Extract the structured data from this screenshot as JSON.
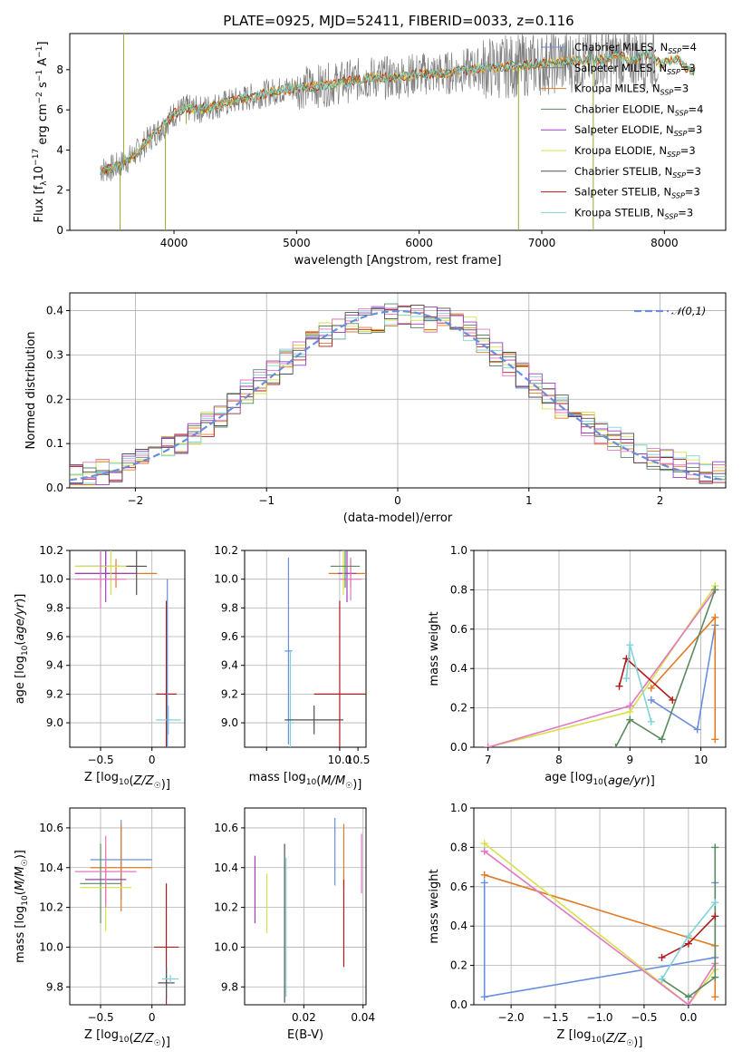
{
  "figure_title": "PLATE=0925, MJD=52411, FIBERID=0033, z=0.116",
  "series_colors": {
    "Chabrier MILES": "#6a8ede",
    "Salpeter MILES": "#808080",
    "Kroupa MILES": "#e07b25",
    "Chabrier ELODIE": "#5a8a5e",
    "Salpeter ELODIE": "#9b3fc0",
    "Kroupa ELODIE": "#d6e04a",
    "Chabrier STELIB": "#505050",
    "Salpeter STELIB": "#b01c1c",
    "Kroupa STELIB": "#7fd3d8",
    "data": "#808080",
    "normal": "#6a8ede",
    "pink": "#e377c2"
  },
  "chart_data": [
    {
      "id": "spectrum",
      "type": "line",
      "xlabel": "wavelength [Angstrom, rest frame]",
      "ylabel": "Flux [f_λ10^-17 erg cm^-2 s^-1 A^-1]",
      "xlim": [
        3150,
        8500
      ],
      "ylim": [
        0,
        9.8
      ],
      "xticks": [
        4000,
        5000,
        6000,
        7000,
        8000
      ],
      "yticks": [
        0,
        2,
        4,
        6,
        8
      ],
      "legend_position": "right",
      "legend": [
        "Chabrier MILES, N_SSP=4",
        "Salpeter MILES, N_SSP=3",
        "Kroupa MILES, N_SSP=3",
        "Chabrier ELODIE, N_SSP=4",
        "Salpeter ELODIE, N_SSP=3",
        "Kroupa ELODIE, N_SSP=3",
        "Chabrier STELIB, N_SSP=3",
        "Salpeter STELIB, N_SSP=3",
        "Kroupa STELIB, N_SSP=3"
      ],
      "continuum": {
        "x": [
          3400,
          3500,
          3600,
          3700,
          3800,
          3900,
          4000,
          4100,
          4200,
          4400,
          4600,
          4800,
          5000,
          5200,
          5400,
          5600,
          5800,
          6000,
          6200,
          6400,
          6600,
          6800,
          7000,
          7200,
          7400,
          7600,
          7800,
          8000,
          8200
        ],
        "y": [
          3.0,
          3.1,
          3.4,
          3.9,
          4.6,
          5.1,
          5.8,
          6.1,
          6.0,
          6.3,
          6.6,
          6.9,
          7.1,
          7.2,
          7.4,
          7.6,
          7.6,
          7.8,
          7.8,
          8.0,
          8.1,
          8.2,
          8.3,
          8.4,
          8.5,
          8.6,
          8.6,
          8.5,
          8.1
        ]
      }
    },
    {
      "id": "residuals",
      "type": "line",
      "xlabel": "(data-model)/error",
      "ylabel": "Normed distribution",
      "xlim": [
        -2.5,
        2.5
      ],
      "ylim": [
        0,
        0.44
      ],
      "xticks": [
        -2,
        -1,
        0,
        1,
        2
      ],
      "yticks": [
        0.0,
        0.1,
        0.2,
        0.3,
        0.4
      ],
      "legend": [
        "𝒩(0,1)"
      ],
      "legend_position": "top-right",
      "bin_width": 0.1,
      "hist_envelope": {
        "x": [
          -2.5,
          -2.0,
          -1.5,
          -1.0,
          -0.5,
          0.0,
          0.5,
          1.0,
          1.5,
          2.0,
          2.5
        ],
        "y": [
          0.02,
          0.05,
          0.13,
          0.25,
          0.36,
          0.39,
          0.37,
          0.24,
          0.13,
          0.06,
          0.03
        ]
      }
    },
    {
      "id": "z-vs-age",
      "type": "scatter",
      "xlabel": "Z [log10(Z/Z☉)]",
      "ylabel": "age  [log10(age/yr)]",
      "xlim": [
        -0.8,
        0.32
      ],
      "ylim": [
        8.83,
        10.2
      ],
      "xticks": [
        -0.5,
        0.0
      ],
      "yticks": [
        9.0,
        9.2,
        9.4,
        9.6,
        9.8,
        10.0,
        10.2
      ],
      "points": [
        {
          "series": "Salpeter MILES",
          "x": -0.45,
          "xerr": 0.3,
          "y": 10.09,
          "yerr": 0.1
        },
        {
          "series": "Kroupa MILES",
          "x": -0.35,
          "xerr": 0.4,
          "y": 10.04,
          "yerr": 0.1
        },
        {
          "series": "Chabrier ELODIE",
          "x": -0.5,
          "xerr": 0.2,
          "y": 10.09,
          "yerr": 0.15
        },
        {
          "series": "Salpeter ELODIE",
          "x": -0.45,
          "xerr": 0.3,
          "y": 10.04,
          "yerr": 0.2
        },
        {
          "series": "Kroupa ELODIE",
          "x": -0.4,
          "xerr": 0.35,
          "y": 10.09,
          "yerr": 0.2
        },
        {
          "series": "pink",
          "x": -0.5,
          "xerr": 0.25,
          "y": 10.0,
          "yerr": 0.2
        },
        {
          "series": "Chabrier STELIB",
          "x": -0.15,
          "xerr": 0.1,
          "y": 10.09,
          "yerr": 0.2
        },
        {
          "series": "Salpeter STELIB",
          "x": 0.14,
          "xerr": 0.1,
          "y": 9.2,
          "yerr": 0.65
        },
        {
          "series": "Kroupa STELIB",
          "x": 0.16,
          "xerr": 0.12,
          "y": 9.02,
          "yerr": 0.1
        },
        {
          "series": "Chabrier MILES",
          "x": 0.15,
          "xerr": 0.0,
          "y": 9.4,
          "yerr": 0.6
        }
      ]
    },
    {
      "id": "mass-vs-age",
      "type": "scatter",
      "xlabel": "mass [log10(M/M☉)]",
      "ylabel": "",
      "xlim": [
        7.4,
        10.72
      ],
      "ylim": [
        8.83,
        10.2
      ],
      "xticks": [
        8,
        10
      ],
      "xtick_labels": [
        "",
        "10.0"
      ],
      "yticks": [
        9.0,
        9.2,
        9.4,
        9.6,
        9.8,
        10.0,
        10.2
      ],
      "extra_xticks": [
        10.5
      ],
      "points": [
        {
          "series": "Chabrier MILES",
          "x": 8.6,
          "xerr": 0.1,
          "y": 9.5,
          "yerr": 0.65
        },
        {
          "series": "Kroupa STELIB",
          "x": 8.65,
          "xerr": 0.1,
          "y": 9.0,
          "yerr": 0.5
        },
        {
          "series": "Chabrier STELIB",
          "x": 9.3,
          "xerr": 0.8,
          "y": 9.02,
          "yerr": 0.1
        },
        {
          "series": "Salpeter STELIB",
          "x": 10.0,
          "xerr": 0.7,
          "y": 9.2,
          "yerr": 0.65
        },
        {
          "series": "Kroupa MILES",
          "x": 10.3,
          "xerr": 0.6,
          "y": 10.04,
          "yerr": 0.1
        },
        {
          "series": "Salpeter ELODIE",
          "x": 10.2,
          "xerr": 0.25,
          "y": 10.04,
          "yerr": 0.2
        },
        {
          "series": "Kroupa ELODIE",
          "x": 10.1,
          "xerr": 0.3,
          "y": 10.09,
          "yerr": 0.2
        },
        {
          "series": "pink",
          "x": 10.3,
          "xerr": 0.3,
          "y": 10.0,
          "yerr": 0.15
        },
        {
          "series": "Chabrier ELODIE",
          "x": 10.15,
          "xerr": 0.4,
          "y": 10.09,
          "yerr": 0.15
        }
      ]
    },
    {
      "id": "age-vs-weight",
      "type": "line",
      "xlabel": "age  [log10(age/yr)]",
      "ylabel": "mass weight",
      "xlim": [
        6.8,
        10.35
      ],
      "ylim": [
        0,
        1.0
      ],
      "xticks": [
        7,
        8,
        9,
        10
      ],
      "yticks": [
        0.0,
        0.2,
        0.4,
        0.6,
        0.8,
        1.0
      ],
      "series": [
        {
          "color": "Kroupa ELODIE",
          "x": [
            7.0,
            9.0,
            10.2
          ],
          "y": [
            0.0,
            0.18,
            0.82
          ]
        },
        {
          "color": "pink",
          "x": [
            7.0,
            9.0,
            10.2
          ],
          "y": [
            0.0,
            0.21,
            0.8
          ]
        },
        {
          "color": "Chabrier MILES",
          "x": [
            9.3,
            9.95,
            10.2
          ],
          "y": [
            0.24,
            0.09,
            0.62
          ]
        },
        {
          "color": "Kroupa MILES",
          "x": [
            9.3,
            10.2,
            10.2
          ],
          "y": [
            0.3,
            0.66,
            0.04
          ]
        },
        {
          "color": "Chabrier ELODIE",
          "x": [
            8.8,
            9.0,
            9.45,
            10.2
          ],
          "y": [
            0.0,
            0.14,
            0.04,
            0.8
          ]
        },
        {
          "color": "Salpeter STELIB",
          "x": [
            8.85,
            8.95,
            9.6
          ],
          "y": [
            0.31,
            0.45,
            0.24
          ]
        },
        {
          "color": "Kroupa STELIB",
          "x": [
            8.95,
            9.0,
            9.3
          ],
          "y": [
            0.35,
            0.52,
            0.13
          ]
        }
      ]
    },
    {
      "id": "z-vs-mass",
      "type": "scatter",
      "xlabel": "Z [log10(Z/Z☉)]",
      "ylabel": "mass [log10(M/M☉)]",
      "xlim": [
        -0.8,
        0.32
      ],
      "ylim": [
        9.71,
        10.7
      ],
      "xticks": [
        -0.5,
        0.0
      ],
      "yticks": [
        9.8,
        10.0,
        10.2,
        10.4,
        10.6
      ],
      "points": [
        {
          "series": "Chabrier MILES",
          "x": -0.3,
          "xerr": 0.3,
          "y": 10.44,
          "yerr": 0.2
        },
        {
          "series": "Kroupa MILES",
          "x": -0.3,
          "xerr": 0.3,
          "y": 10.4,
          "yerr": 0.22
        },
        {
          "series": "Chabrier ELODIE",
          "x": -0.5,
          "xerr": 0.2,
          "y": 10.32,
          "yerr": 0.2
        },
        {
          "series": "Salpeter ELODIE",
          "x": -0.45,
          "xerr": 0.2,
          "y": 10.34,
          "yerr": 0.12
        },
        {
          "series": "Kroupa ELODIE",
          "x": -0.45,
          "xerr": 0.25,
          "y": 10.3,
          "yerr": 0.22
        },
        {
          "series": "pink",
          "x": -0.45,
          "xerr": 0.3,
          "y": 10.38,
          "yerr": 0.18
        },
        {
          "series": "Salpeter STELIB",
          "x": 0.14,
          "xerr": 0.12,
          "y": 10.0,
          "yerr": 0.32
        },
        {
          "series": "Chabrier STELIB",
          "x": 0.14,
          "xerr": 0.08,
          "y": 9.82,
          "yerr": 0.08
        },
        {
          "series": "Kroupa STELIB",
          "x": 0.18,
          "xerr": 0.08,
          "y": 9.84,
          "yerr": 0.02
        }
      ]
    },
    {
      "id": "ebv-vs-mass",
      "type": "scatter",
      "xlabel": "E(B-V)",
      "ylabel": "",
      "xlim": [
        0.0,
        0.041
      ],
      "ylim": [
        9.71,
        10.7
      ],
      "xticks": [
        0.02,
        0.04
      ],
      "yticks": [
        9.8,
        10.0,
        10.2,
        10.4,
        10.6
      ],
      "points": [
        {
          "series": "Salpeter ELODIE",
          "x": 0.0035,
          "y": 10.29,
          "yerr": 0.17
        },
        {
          "series": "Kroupa ELODIE",
          "x": 0.0075,
          "y": 10.22,
          "yerr": 0.15
        },
        {
          "series": "Chabrier STELIB",
          "x": 0.0135,
          "y": 10.12,
          "yerr": 0.4
        },
        {
          "series": "Kroupa STELIB",
          "x": 0.014,
          "y": 10.1,
          "yerr": 0.35
        },
        {
          "series": "Chabrier MILES",
          "x": 0.0305,
          "y": 10.48,
          "yerr": 0.17
        },
        {
          "series": "Kroupa MILES",
          "x": 0.0335,
          "y": 10.46,
          "yerr": 0.16
        },
        {
          "series": "Salpeter STELIB",
          "x": 0.0335,
          "y": 10.12,
          "yerr": 0.22
        },
        {
          "series": "pink",
          "x": 0.0395,
          "y": 10.42,
          "yerr": 0.15
        }
      ]
    },
    {
      "id": "z-vs-weight",
      "type": "line",
      "xlabel": "Z [log10(Z/Z☉)]",
      "ylabel": "mass weight",
      "xlim": [
        -2.42,
        0.42
      ],
      "ylim": [
        0,
        1.0
      ],
      "xticks": [
        -2.0,
        -1.5,
        -1.0,
        -0.5,
        0.0
      ],
      "yticks": [
        0.0,
        0.2,
        0.4,
        0.6,
        0.8,
        1.0
      ],
      "series": [
        {
          "color": "Chabrier MILES",
          "x": [
            -2.3,
            -2.3,
            0.3,
            0.3
          ],
          "y": [
            0.62,
            0.04,
            0.24,
            0.62
          ]
        },
        {
          "color": "Kroupa MILES",
          "x": [
            -2.3,
            0.3,
            0.3
          ],
          "y": [
            0.66,
            0.3,
            0.04
          ]
        },
        {
          "color": "Kroupa ELODIE",
          "x": [
            -2.3,
            0.0,
            0.3
          ],
          "y": [
            0.82,
            0.0,
            0.18
          ]
        },
        {
          "color": "pink",
          "x": [
            -2.3,
            0.0,
            0.3
          ],
          "y": [
            0.78,
            0.0,
            0.21
          ]
        },
        {
          "color": "Chabrier ELODIE",
          "x": [
            -0.3,
            0.0,
            0.3,
            0.3
          ],
          "y": [
            0.13,
            0.04,
            0.14,
            0.8
          ]
        },
        {
          "color": "Salpeter STELIB",
          "x": [
            -0.3,
            0.0,
            0.3
          ],
          "y": [
            0.24,
            0.31,
            0.45
          ]
        },
        {
          "color": "Kroupa STELIB",
          "x": [
            -0.3,
            0.0,
            0.3
          ],
          "y": [
            0.13,
            0.35,
            0.52
          ]
        }
      ]
    }
  ]
}
